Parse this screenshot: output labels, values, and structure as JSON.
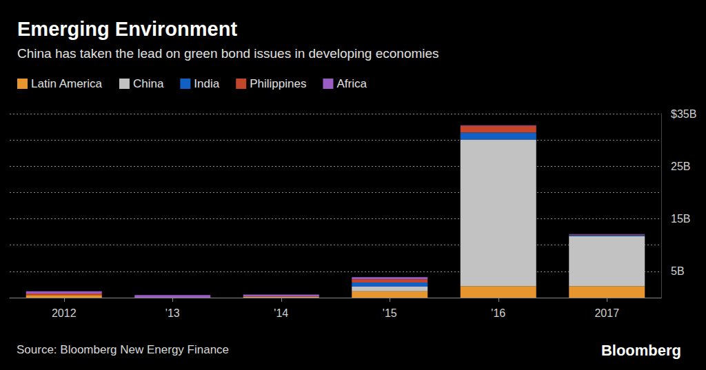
{
  "chart_data": {
    "type": "bar",
    "title": "Emerging Environment",
    "subtitle": "China has taken the lead on green bond issues in developing economies",
    "annotations": [
      "Source: Bloomberg New Energy Finance",
      "Bloomberg"
    ],
    "categories": [
      "2012",
      "'13",
      "'14",
      "'15",
      "'16",
      "2017"
    ],
    "stacked": true,
    "legend": "top-left",
    "grid": true,
    "series": [
      {
        "name": "Latin America",
        "color": "#e6952f",
        "values": [
          0.5,
          0,
          0.2,
          1.2,
          2.2,
          2.2
        ]
      },
      {
        "name": "China",
        "color": "#c2c2c2",
        "values": [
          0,
          0,
          0,
          0.9,
          27.9,
          9.5
        ]
      },
      {
        "name": "India",
        "color": "#1260c4",
        "values": [
          0,
          0,
          0,
          0.8,
          1.3,
          0.2
        ]
      },
      {
        "name": "Philippines",
        "color": "#c4462a",
        "values": [
          0.3,
          0,
          0,
          0.6,
          1.3,
          0.1
        ]
      },
      {
        "name": "Africa",
        "color": "#9b5cc4",
        "values": [
          0.4,
          0.5,
          0.4,
          0.4,
          0.1,
          0.1
        ]
      }
    ],
    "ylim": [
      0,
      35
    ],
    "yticks": [
      {
        "value": 5,
        "label": "5B"
      },
      {
        "value": 15,
        "label": "15B"
      },
      {
        "value": 25,
        "label": "25B"
      },
      {
        "value": 35,
        "label": "$35B"
      }
    ]
  }
}
